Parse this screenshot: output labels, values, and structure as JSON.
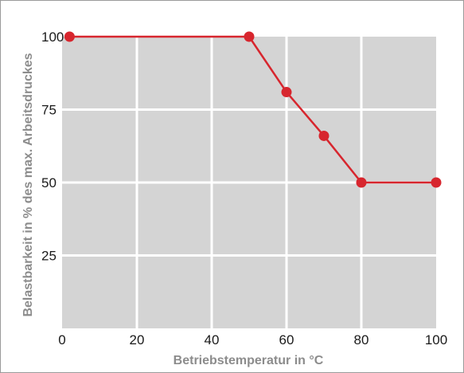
{
  "chart_data": {
    "type": "line",
    "title": "",
    "xlabel": "Betriebstemperatur in °C",
    "ylabel": "Belastbarkeit in % des max. Arbeitsdruckes",
    "xlim": [
      0,
      100
    ],
    "ylim": [
      0,
      100
    ],
    "x_ticks": [
      "0",
      "20",
      "40",
      "60",
      "80",
      "100"
    ],
    "y_ticks": [
      "25",
      "50",
      "75",
      "100"
    ],
    "grid": true,
    "series": [
      {
        "x": [
          2,
          50,
          60,
          70,
          80,
          100
        ],
        "y": [
          100,
          100,
          81,
          66,
          50,
          50
        ]
      }
    ],
    "colors": {
      "line": "#d7262e",
      "plot_background": "#d4d4d4",
      "grid": "#ffffff"
    }
  }
}
